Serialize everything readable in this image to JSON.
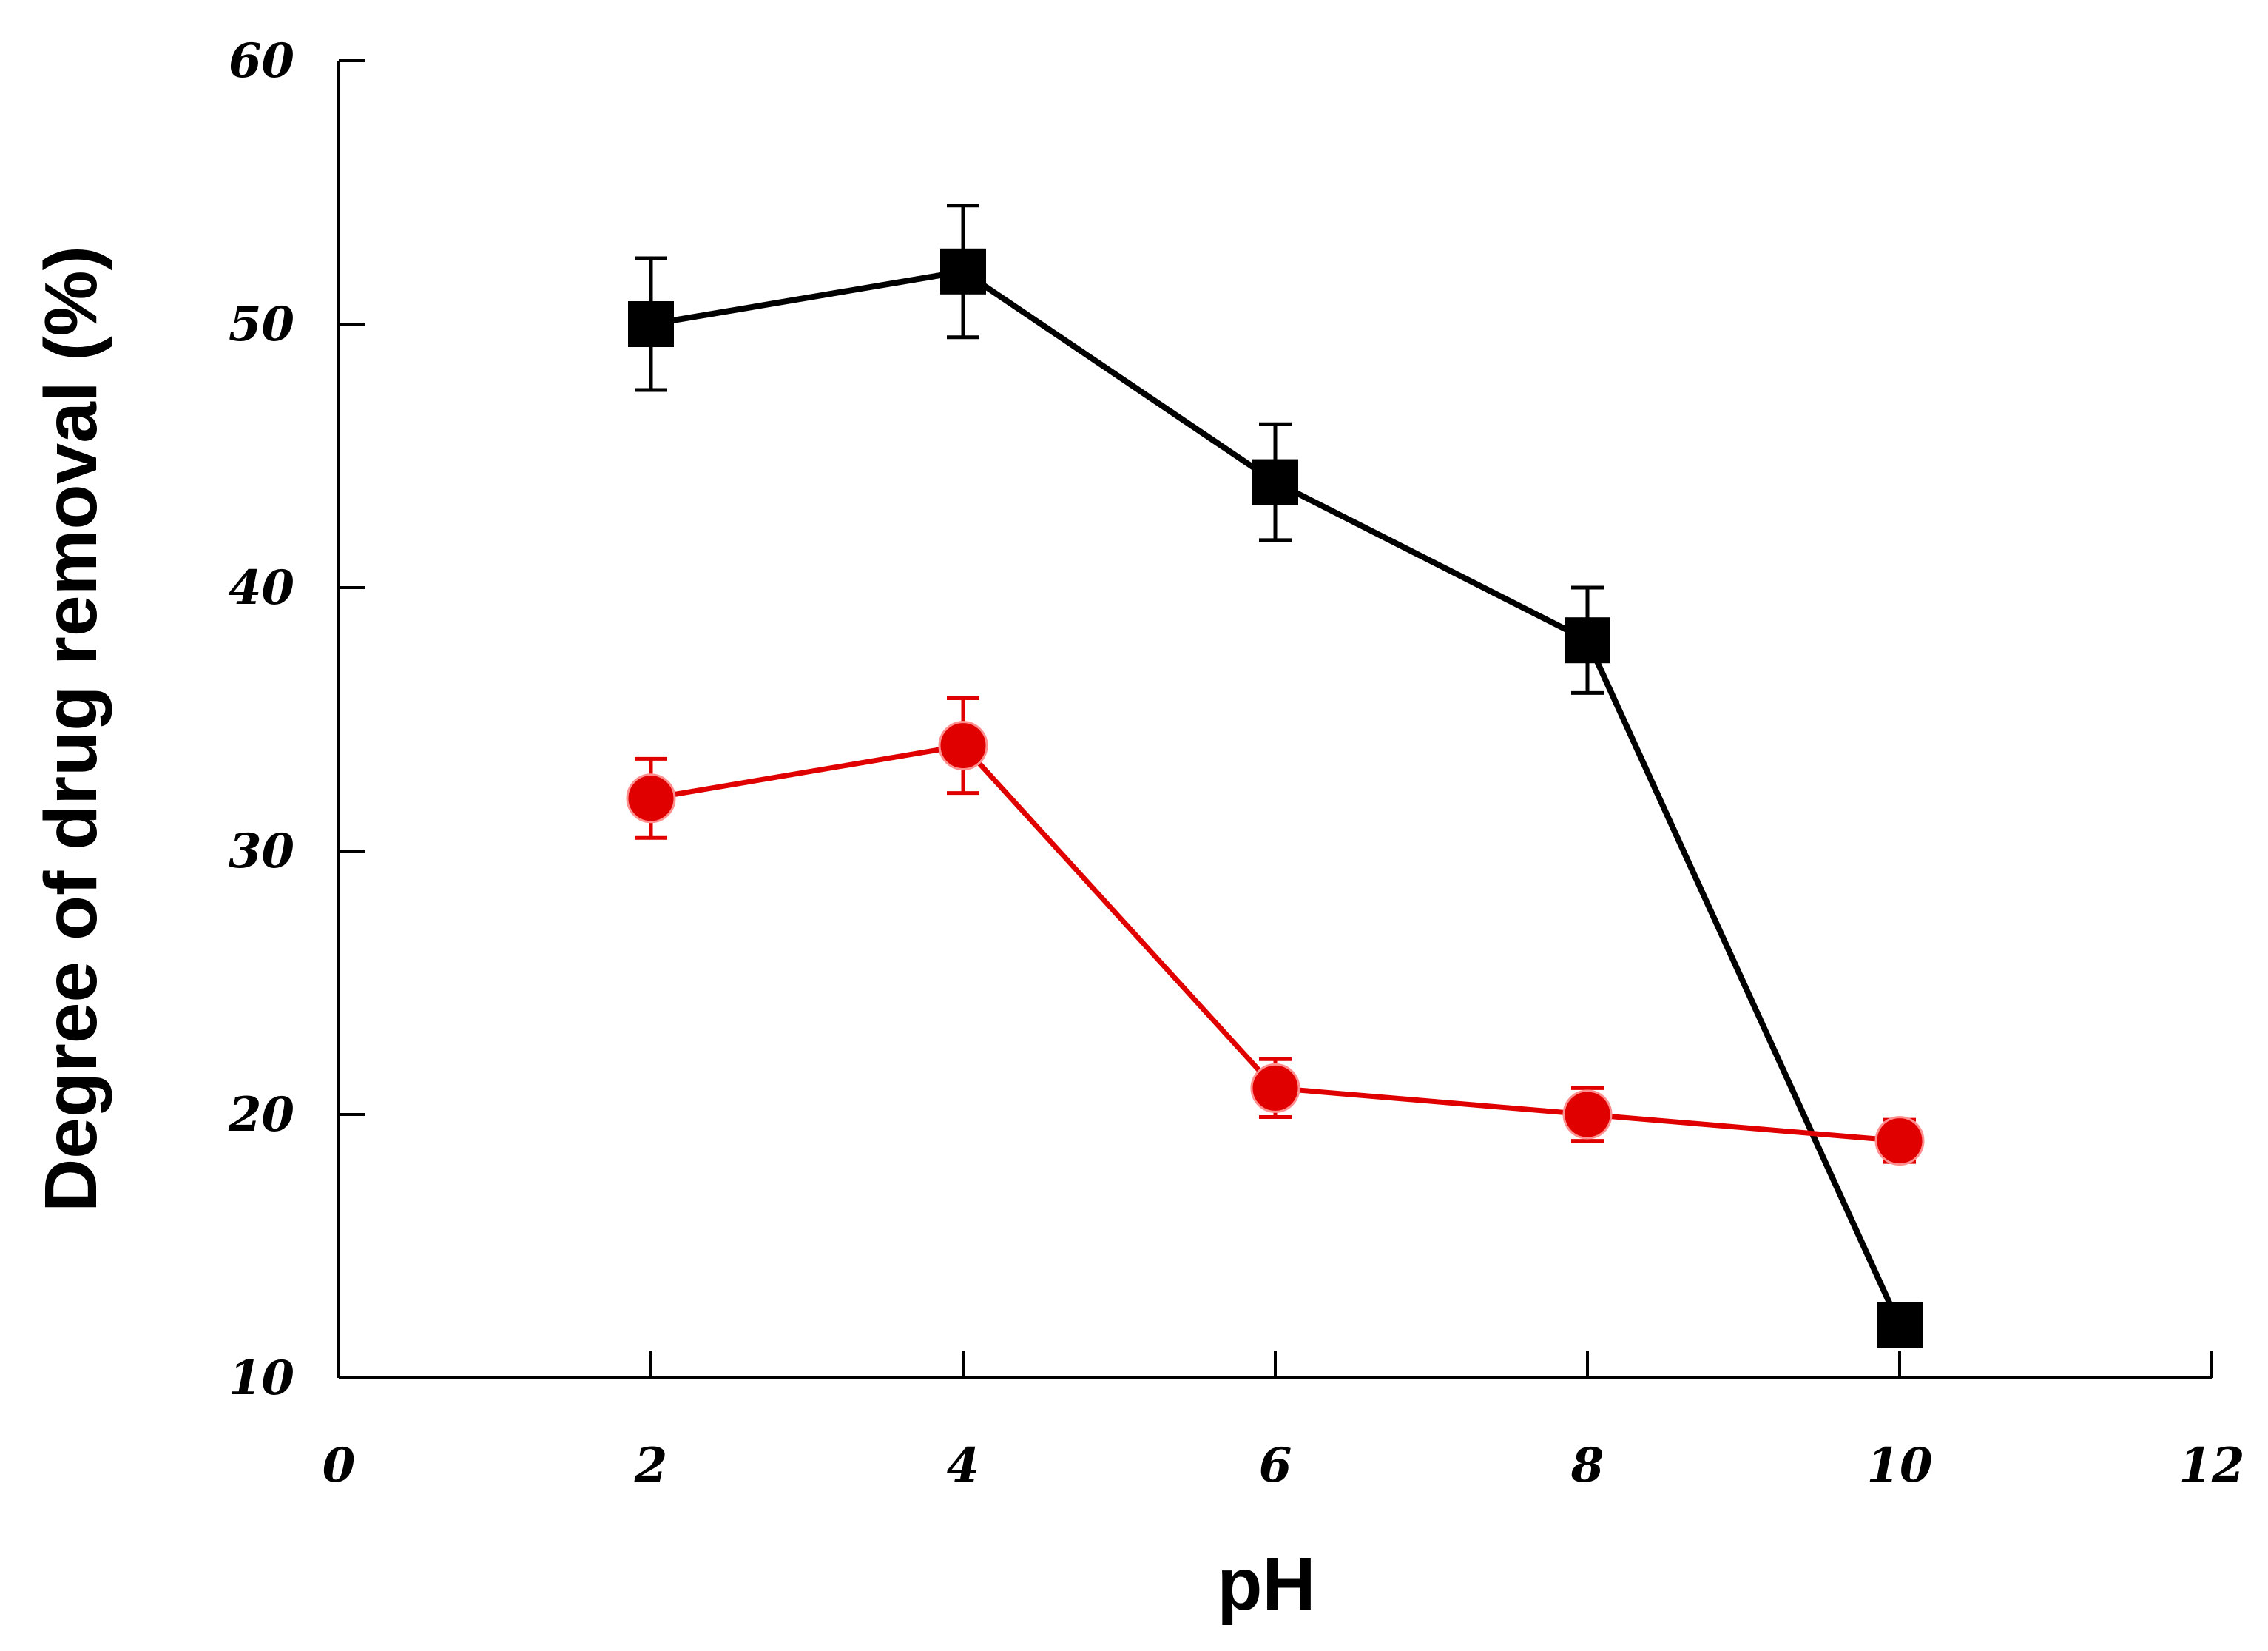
{
  "chart_data": {
    "type": "line",
    "title": "",
    "xlabel": "pH",
    "ylabel": "Degree of drug removal (%)",
    "xlim": [
      0,
      12
    ],
    "ylim": [
      10,
      60
    ],
    "x_ticks": [
      0,
      2,
      4,
      6,
      8,
      10,
      12
    ],
    "y_ticks": [
      10,
      20,
      30,
      40,
      50,
      60
    ],
    "grid": false,
    "legend": "none",
    "series": [
      {
        "name": "series-black",
        "color": "#000000",
        "marker": "square",
        "x": [
          2,
          4,
          6,
          8,
          10
        ],
        "y": [
          50,
          52,
          44,
          38,
          12
        ],
        "error": [
          2.5,
          2.5,
          2.2,
          2.0,
          0
        ]
      },
      {
        "name": "series-red",
        "color": "#e00000",
        "marker": "circle",
        "x": [
          2,
          4,
          6,
          8,
          10
        ],
        "y": [
          32,
          34,
          21,
          20,
          19
        ],
        "error": [
          1.5,
          1.8,
          1.1,
          1.0,
          0.8
        ]
      }
    ]
  }
}
